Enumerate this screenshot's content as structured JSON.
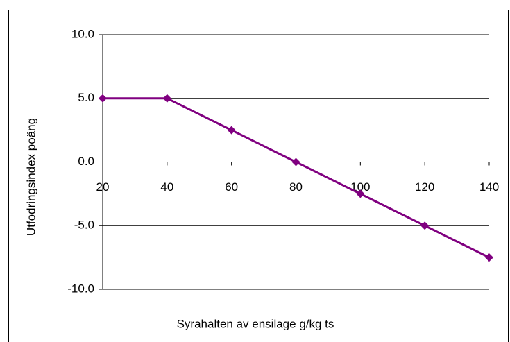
{
  "chart_data": {
    "type": "line",
    "x_label": "Syrahalten av ensilage g/kg ts",
    "y_label": "Utfodringsindex poäng",
    "series": [
      {
        "name": "Utfodringsindex",
        "color": "#800080",
        "x": [
          20,
          40,
          60,
          80,
          100,
          120,
          140
        ],
        "values": [
          5,
          5,
          2.5,
          0,
          -2.5,
          -5,
          -7.5
        ]
      }
    ],
    "xlim": [
      20,
      140
    ],
    "xticks": [
      20,
      40,
      60,
      80,
      100,
      120,
      140
    ],
    "ylim": [
      -10,
      10
    ],
    "yticks": [
      {
        "value": 10,
        "label": "10.0"
      },
      {
        "value": 5,
        "label": "5.0"
      },
      {
        "value": 0,
        "label": "0.0"
      },
      {
        "value": -5,
        "label": "-5.0"
      },
      {
        "value": -10,
        "label": "-10.0"
      }
    ],
    "grid": true
  }
}
